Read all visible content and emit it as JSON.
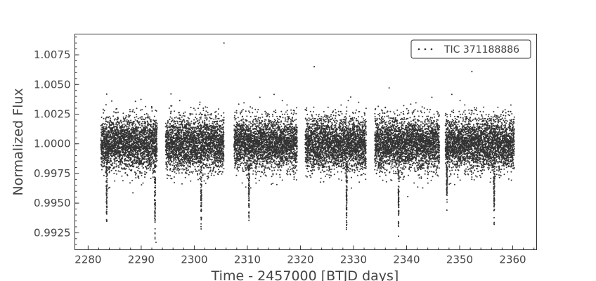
{
  "chart_data": {
    "type": "scatter",
    "title": "",
    "xlabel": "Time - 2457000 [BTJD days]",
    "ylabel": "Normalized Flux",
    "xlim": [
      2277.5,
      2364.5
    ],
    "ylim": [
      0.99107,
      1.00925
    ],
    "x_ticks": [
      2280,
      2290,
      2300,
      2310,
      2320,
      2330,
      2340,
      2350,
      2360
    ],
    "x_tick_labels": [
      "2280",
      "2290",
      "2300",
      "2310",
      "2320",
      "2330",
      "2340",
      "2350",
      "2360"
    ],
    "y_ticks": [
      0.9925,
      0.995,
      0.9975,
      1.0,
      1.0025,
      1.005,
      1.0075
    ],
    "y_tick_labels": [
      "0.9925",
      "0.9950",
      "0.9975",
      "1.0000",
      "1.0025",
      "1.0050",
      "1.0075"
    ],
    "grid": false,
    "legend_position": "top-right",
    "marker_color": "#333333",
    "series": [
      {
        "name": "TIC 371188886",
        "baseline_flux": 1.0,
        "scatter_std": 0.0011,
        "observing_segments": [
          [
            2282.4,
            2293.0
          ],
          [
            2294.6,
            2305.6
          ],
          [
            2307.5,
            2319.4
          ],
          [
            2320.9,
            2332.4
          ],
          [
            2334.0,
            2346.2
          ],
          [
            2347.3,
            2360.3
          ]
        ],
        "transit_times": [
          2283.5,
          2292.6,
          2301.3,
          2310.3,
          2328.7,
          2338.5,
          2347.6,
          2356.5
        ],
        "transit_min_flux": [
          0.9931,
          0.9921,
          0.9928,
          0.9935,
          0.9927,
          0.9924,
          0.9948,
          0.9929
        ],
        "outliers": [
          {
            "x": 2305.6,
            "y": 1.0085
          },
          {
            "x": 2322.6,
            "y": 1.0065
          },
          {
            "x": 2352.3,
            "y": 1.0061
          },
          {
            "x": 2292.8,
            "y": 0.9917
          }
        ]
      }
    ]
  },
  "legend": {
    "label": "TIC 371188886"
  }
}
